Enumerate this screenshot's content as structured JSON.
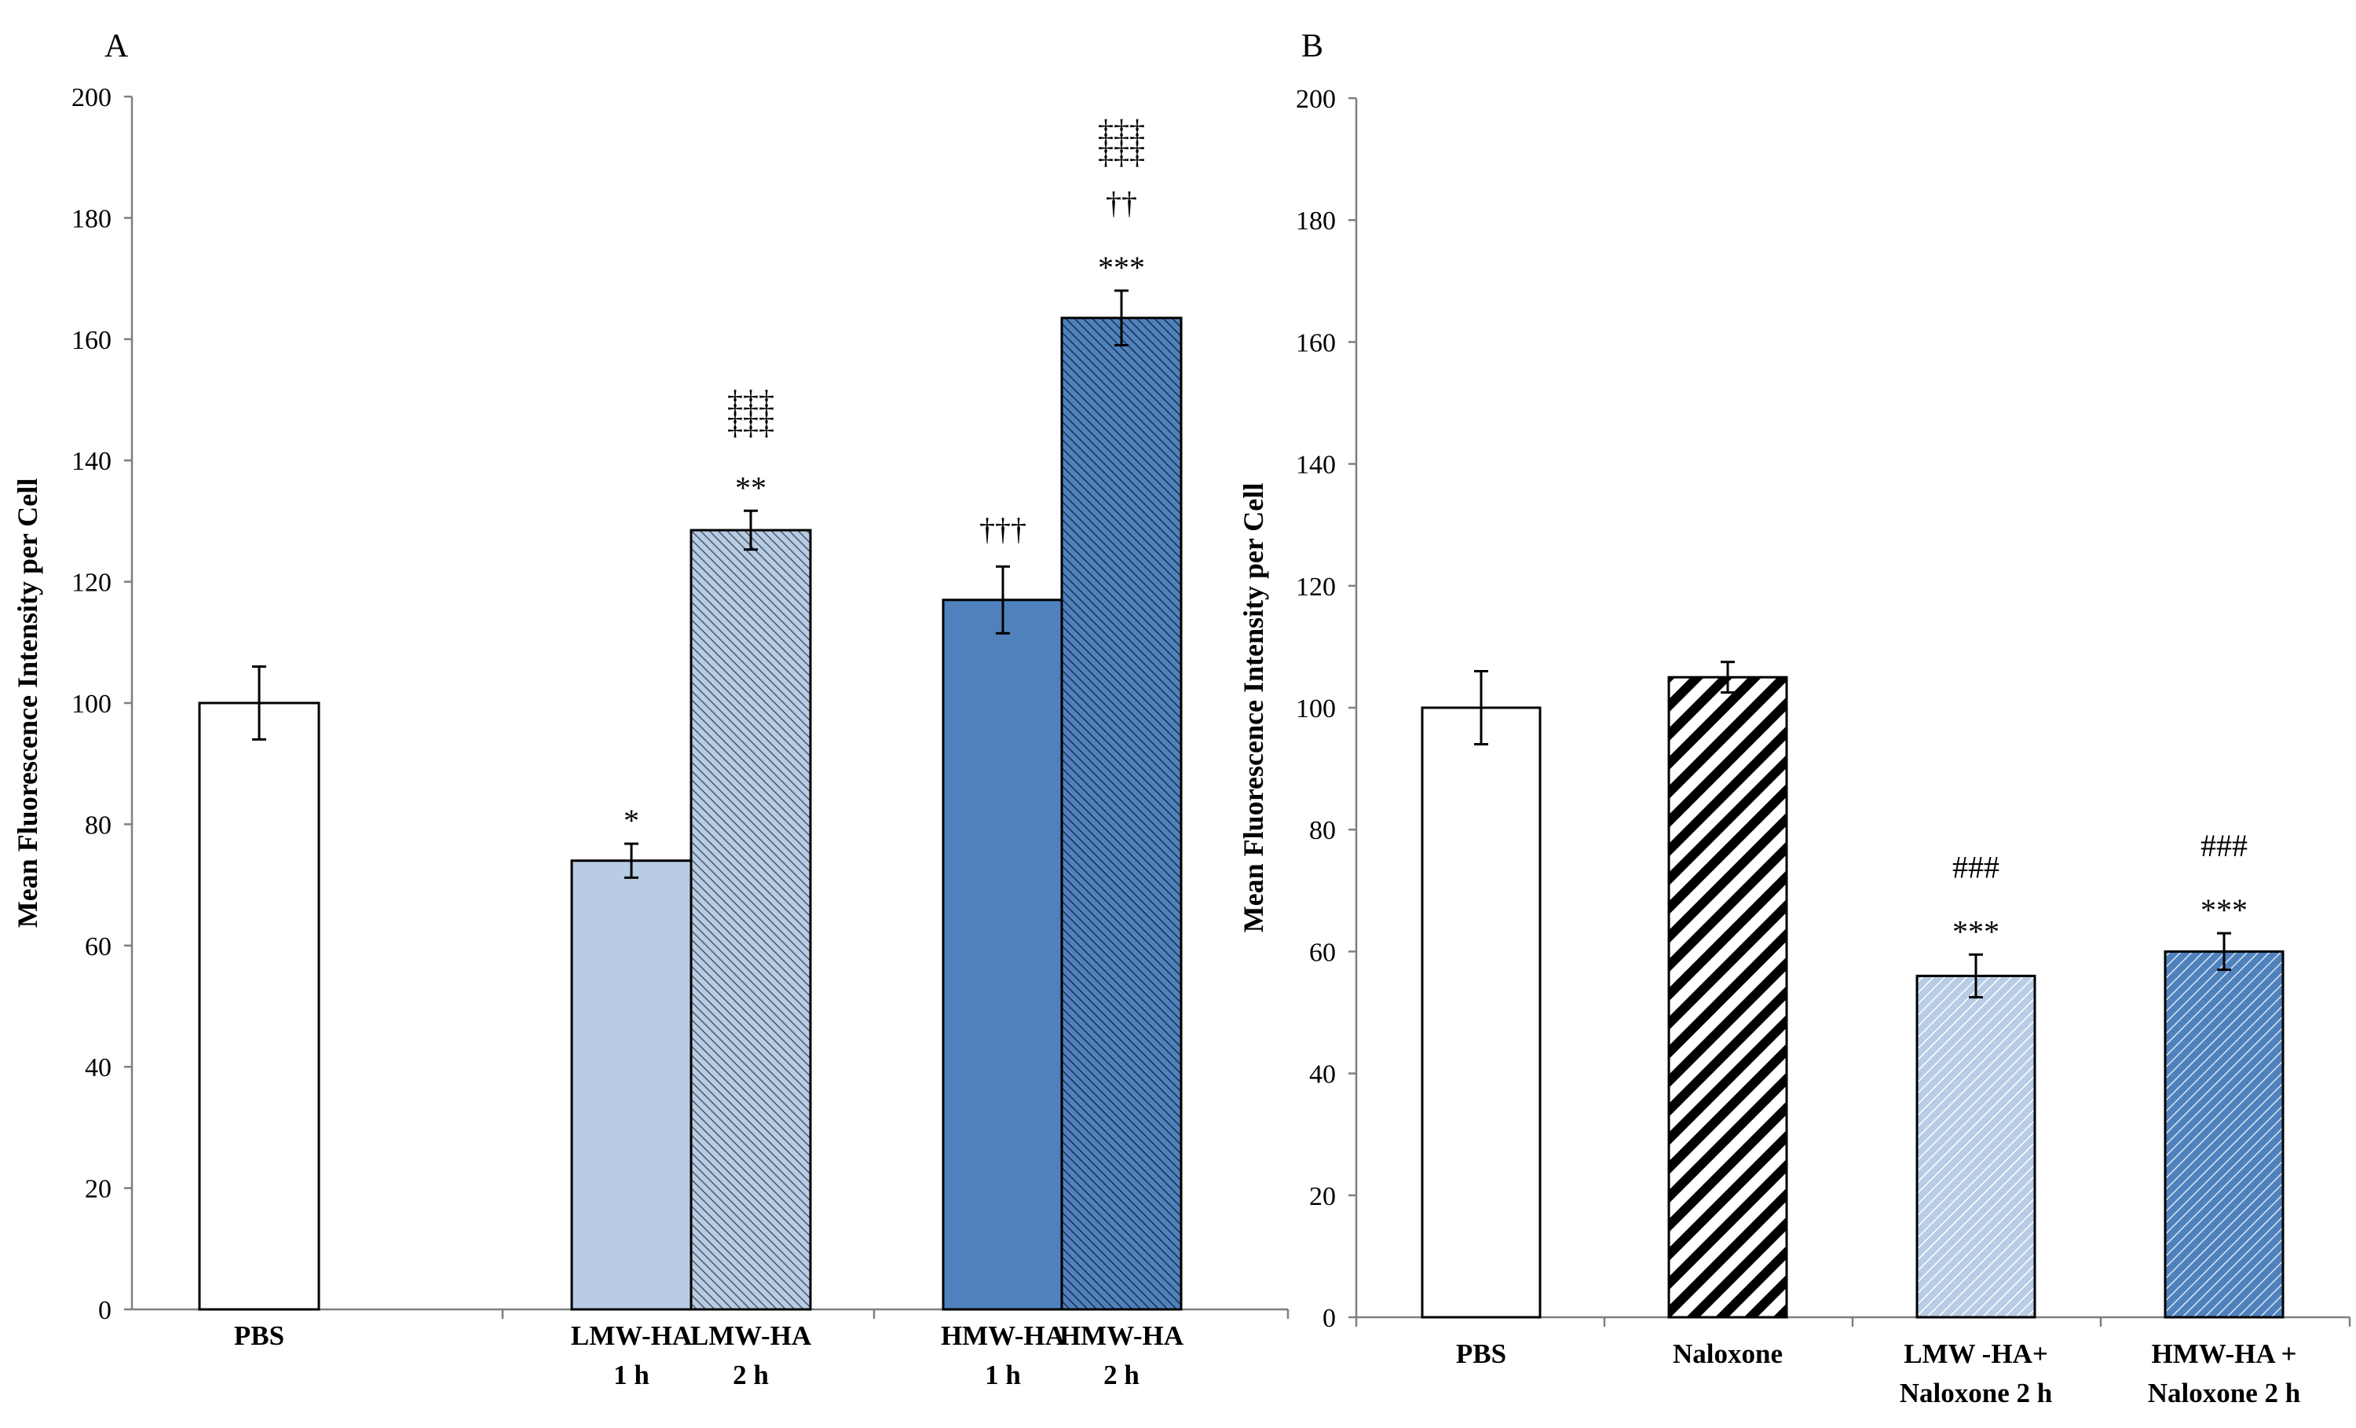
{
  "chart_data": [
    {
      "type": "bar",
      "panel": "A",
      "ylabel": "Mean Fluorescence Intensity per Cell",
      "ylim": [
        0,
        200
      ],
      "yticks": [
        0,
        20,
        40,
        60,
        80,
        100,
        120,
        140,
        160,
        180,
        200
      ],
      "grid": false,
      "bars": [
        {
          "label": [
            "PBS"
          ],
          "value": 100,
          "error": 6,
          "fill": "white",
          "pattern": "none",
          "annotations": []
        },
        {
          "label": [
            "LMW-HA",
            "1 h"
          ],
          "value": 74,
          "error": 2.8,
          "fill": "#b8cce4",
          "pattern": "none",
          "annotations": [
            "*"
          ]
        },
        {
          "label": [
            "LMW-HA",
            "2 h"
          ],
          "value": 128.5,
          "error": 3.2,
          "fill": "#b8cce4",
          "pattern": "fine-diagonal",
          "annotations": [
            "**",
            "‡‡‡",
            "‡‡‡"
          ]
        },
        {
          "label": [
            "HMW-HA",
            "1 h"
          ],
          "value": 117,
          "error": 5.5,
          "fill": "#4f81bd",
          "pattern": "none",
          "annotations": [
            "†††"
          ]
        },
        {
          "label": [
            "HMW-HA",
            "2 h"
          ],
          "value": 163.5,
          "error": 4.5,
          "fill": "#4f81bd",
          "pattern": "fine-diagonal",
          "annotations": [
            "***",
            "††",
            "‡‡‡",
            "‡‡‡"
          ]
        }
      ]
    },
    {
      "type": "bar",
      "panel": "B",
      "ylabel": "Mean Fluorescence Intensity per Cell",
      "ylim": [
        0,
        200
      ],
      "yticks": [
        0,
        20,
        40,
        60,
        80,
        100,
        120,
        140,
        160,
        180,
        200
      ],
      "grid": false,
      "bars": [
        {
          "label": [
            "PBS"
          ],
          "value": 100,
          "error": 6,
          "fill": "white",
          "pattern": "none",
          "annotations": []
        },
        {
          "label": [
            "Naloxone"
          ],
          "value": 105,
          "error": 2.5,
          "fill": "white",
          "pattern": "wide-diagonal-black",
          "annotations": []
        },
        {
          "label": [
            "LMW -HA+",
            "Naloxone 2 h"
          ],
          "value": 56,
          "error": 3.5,
          "fill": "#b8cce4",
          "pattern": "diagonal-white",
          "annotations": [
            "***",
            "###"
          ]
        },
        {
          "label": [
            "HMW-HA +",
            "Naloxone 2 h"
          ],
          "value": 60,
          "error": 3,
          "fill": "#4f81bd",
          "pattern": "diagonal-white",
          "annotations": [
            "***",
            "###"
          ]
        }
      ]
    }
  ]
}
